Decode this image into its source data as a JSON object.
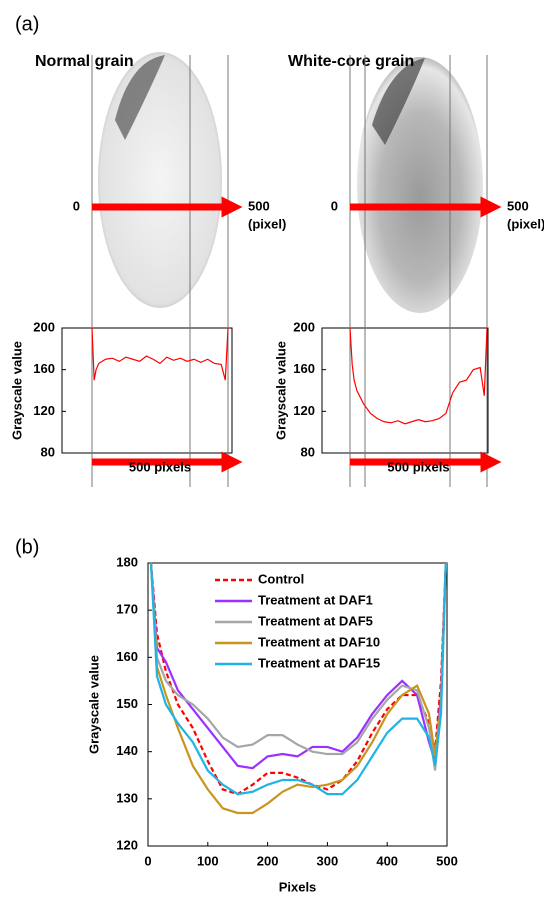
{
  "chart_data": [
    {
      "type": "line",
      "panel": "(a)",
      "title": "Normal grain",
      "y_label": "Grayscale value",
      "arrow_start_label": "0",
      "arrow_end_label": "500",
      "arrow_unit": "(pixel)",
      "x_label": "500 pixels",
      "xlim": [
        0,
        500
      ],
      "ylim": [
        80,
        200
      ],
      "yticks": [
        80,
        120,
        160,
        200
      ],
      "x": [
        0,
        8,
        15,
        25,
        50,
        75,
        100,
        125,
        150,
        175,
        200,
        225,
        250,
        275,
        300,
        325,
        350,
        375,
        400,
        425,
        450,
        475,
        490,
        500
      ],
      "series": [
        {
          "color": "#ff0000",
          "values": [
            200,
            150,
            160,
            166,
            170,
            171,
            168,
            172,
            170,
            168,
            173,
            170,
            166,
            172,
            169,
            171,
            168,
            170,
            167,
            170,
            166,
            165,
            150,
            200
          ]
        }
      ]
    },
    {
      "type": "line",
      "title": "White-core grain",
      "y_label": "Grayscale value",
      "arrow_start_label": "0",
      "arrow_end_label": "500",
      "arrow_unit": "(pixel)",
      "x_label": "500 pixels",
      "xlim": [
        0,
        500
      ],
      "ylim": [
        80,
        200
      ],
      "yticks": [
        80,
        120,
        160,
        200
      ],
      "x": [
        0,
        8,
        15,
        25,
        50,
        75,
        100,
        125,
        150,
        175,
        200,
        225,
        250,
        275,
        300,
        325,
        350,
        375,
        400,
        425,
        450,
        475,
        490,
        500
      ],
      "series": [
        {
          "color": "#ff0000",
          "values": [
            200,
            165,
            150,
            140,
            127,
            118,
            113,
            110,
            109,
            111,
            108,
            110,
            112,
            110,
            111,
            113,
            118,
            138,
            148,
            150,
            160,
            162,
            135,
            200
          ]
        }
      ]
    },
    {
      "type": "line",
      "panel": "(b)",
      "x_label": "Pixels",
      "y_label": "Grayscale value",
      "xlim": [
        0,
        500
      ],
      "xticks": [
        0,
        100,
        200,
        300,
        400,
        500
      ],
      "ylim": [
        120,
        180
      ],
      "yticks": [
        120,
        130,
        140,
        150,
        160,
        170,
        180
      ],
      "legend": "upper center",
      "x": [
        5,
        15,
        30,
        50,
        75,
        100,
        125,
        150,
        175,
        200,
        225,
        250,
        275,
        300,
        325,
        350,
        375,
        400,
        425,
        450,
        470,
        480,
        490,
        498
      ],
      "series": [
        {
          "name": "Control",
          "color": "#ff0000",
          "dashed": true,
          "values": [
            180,
            165,
            157,
            150,
            145,
            138,
            132,
            131,
            133,
            135.5,
            135.5,
            134.5,
            133,
            132,
            134,
            138,
            144,
            149,
            152,
            152,
            146,
            140,
            155,
            180
          ]
        },
        {
          "name": "Treatment at DAF1",
          "color": "#9b30ff",
          "values": [
            180,
            162,
            159,
            153,
            149,
            145,
            141,
            137,
            136.5,
            139,
            139.5,
            139,
            141,
            141,
            140,
            143,
            148,
            152,
            155,
            152,
            142,
            138,
            152,
            180
          ]
        },
        {
          "name": "Treatment at DAF5",
          "color": "#a6a6a6",
          "values": [
            180,
            160,
            155,
            152,
            150,
            147,
            143,
            141,
            141.5,
            143.5,
            143.5,
            141.5,
            140,
            139.5,
            139.5,
            142,
            147,
            151,
            154,
            153,
            145,
            136,
            150,
            180
          ]
        },
        {
          "name": "Treatment at DAF10",
          "color": "#c8961e",
          "values": [
            180,
            158,
            152,
            145,
            137,
            132,
            128,
            127,
            127,
            129,
            131.5,
            133,
            132.5,
            133,
            134,
            137,
            142,
            148,
            152,
            154,
            148,
            139,
            150,
            180
          ]
        },
        {
          "name": "Treatment at DAF15",
          "color": "#1eb4e6",
          "values": [
            180,
            156,
            150,
            146,
            142,
            136,
            133,
            131,
            131.5,
            133,
            134,
            134,
            133,
            131,
            131,
            134,
            139,
            144,
            147,
            147,
            143,
            137,
            148,
            180
          ]
        }
      ]
    }
  ]
}
